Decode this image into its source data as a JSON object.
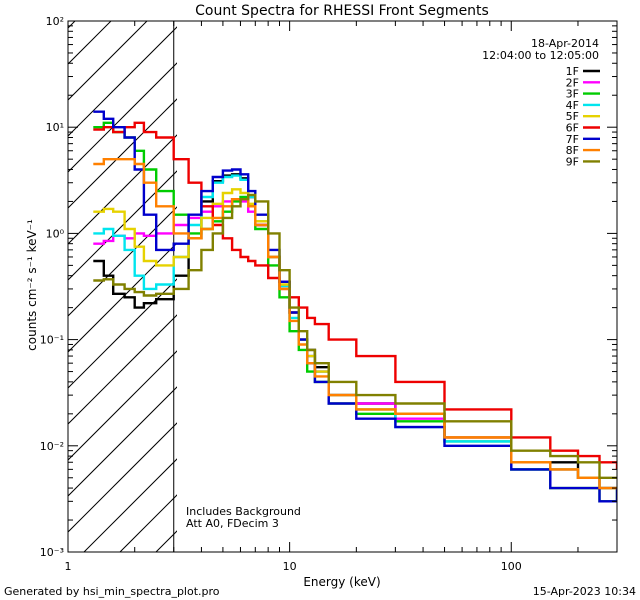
{
  "chart_data": {
    "type": "line",
    "title": "Count Spectra for RHESSI Front Segments",
    "xlabel": "Energy (keV)",
    "ylabel": "counts cm⁻² s⁻¹ keV⁻¹",
    "xscale": "log",
    "yscale": "log",
    "xlim": [
      1,
      300
    ],
    "ylim": [
      0.001,
      100
    ],
    "x_tick_labels": [
      "1",
      "10",
      "100"
    ],
    "y_tick_labels": [
      "10⁻³",
      "10⁻²",
      "10⁻¹",
      "10⁰",
      "10¹",
      "10²"
    ],
    "date": "18-Apr-2014",
    "time_range": "12:04:00 to 12:05:00",
    "annotation_lines": [
      "Includes Background",
      "Att A0, FDecim 3"
    ],
    "footer_left": "Generated by hsi_min_spectra_plot.pro",
    "footer_right": "15-Apr-2023 10:34",
    "hatched_region_max_energy": 3,
    "series": [
      {
        "name": "1F",
        "color": "#000000",
        "x": [
          1.3,
          1.45,
          1.6,
          1.8,
          2.0,
          2.2,
          2.5,
          3.0,
          3.5,
          4.0,
          4.5,
          5.0,
          5.5,
          6.0,
          6.5,
          7.0,
          8.0,
          9.0,
          10.0,
          11.0,
          12.0,
          13.0,
          15.0,
          20.0,
          30.0,
          50.0,
          100.0,
          150.0,
          200.0,
          250.0,
          300.0
        ],
        "y": [
          0.55,
          0.4,
          0.27,
          0.25,
          0.2,
          0.22,
          0.24,
          0.4,
          0.9,
          2.0,
          3.1,
          3.5,
          3.6,
          3.3,
          2.2,
          1.2,
          0.6,
          0.35,
          0.18,
          0.1,
          0.08,
          0.055,
          0.03,
          0.025,
          0.02,
          0.012,
          0.006,
          0.007,
          0.005,
          0.004,
          0.004
        ]
      },
      {
        "name": "2F",
        "color": "#ff00ff",
        "x": [
          1.3,
          1.45,
          1.6,
          1.8,
          2.0,
          2.2,
          2.5,
          3.0,
          3.5,
          4.0,
          4.5,
          5.0,
          5.5,
          6.0,
          6.5,
          7.0,
          8.0,
          9.0,
          10.0,
          11.0,
          12.0,
          13.0,
          15.0,
          20.0,
          30.0,
          50.0,
          100.0,
          150.0,
          200.0,
          250.0,
          300.0
        ],
        "y": [
          0.8,
          0.85,
          0.95,
          0.9,
          1.0,
          0.95,
          1.0,
          1.2,
          1.4,
          1.6,
          1.8,
          2.0,
          2.1,
          2.0,
          1.6,
          1.2,
          0.6,
          0.35,
          0.18,
          0.1,
          0.07,
          0.05,
          0.03,
          0.025,
          0.018,
          0.012,
          0.007,
          0.006,
          0.005,
          0.004,
          0.004
        ]
      },
      {
        "name": "3F",
        "color": "#00cc00",
        "x": [
          1.3,
          1.45,
          1.6,
          1.8,
          2.0,
          2.2,
          2.5,
          3.0,
          3.5,
          4.0,
          4.5,
          5.0,
          5.5,
          6.0,
          6.5,
          7.0,
          8.0,
          9.0,
          10.0,
          11.0,
          12.0,
          13.0,
          15.0,
          20.0,
          30.0,
          50.0,
          100.0,
          150.0,
          200.0,
          250.0,
          300.0
        ],
        "y": [
          10.0,
          11.0,
          9.0,
          8.0,
          6.0,
          4.0,
          2.5,
          1.5,
          1.0,
          1.1,
          1.3,
          1.6,
          2.0,
          2.2,
          1.8,
          1.1,
          0.5,
          0.25,
          0.12,
          0.08,
          0.05,
          0.04,
          0.025,
          0.02,
          0.017,
          0.011,
          0.006,
          0.004,
          0.004,
          0.003,
          0.004
        ]
      },
      {
        "name": "4F",
        "color": "#00e5ee",
        "x": [
          1.3,
          1.45,
          1.6,
          1.8,
          2.0,
          2.2,
          2.5,
          3.0,
          3.5,
          4.0,
          4.5,
          5.0,
          5.5,
          6.0,
          6.5,
          7.0,
          8.0,
          9.0,
          10.0,
          11.0,
          12.0,
          13.0,
          15.0,
          20.0,
          30.0,
          50.0,
          100.0,
          150.0,
          200.0,
          250.0,
          300.0
        ],
        "y": [
          1.0,
          1.1,
          0.95,
          0.7,
          0.4,
          0.3,
          0.33,
          0.6,
          1.2,
          2.2,
          3.0,
          3.4,
          3.5,
          3.2,
          2.2,
          1.3,
          0.6,
          0.32,
          0.16,
          0.1,
          0.07,
          0.05,
          0.03,
          0.022,
          0.015,
          0.011,
          0.006,
          0.006,
          0.005,
          0.004,
          0.004
        ]
      },
      {
        "name": "5F",
        "color": "#e6d200",
        "x": [
          1.3,
          1.45,
          1.6,
          1.8,
          2.0,
          2.2,
          2.5,
          3.0,
          3.5,
          4.0,
          4.5,
          5.0,
          5.5,
          6.0,
          6.5,
          7.0,
          8.0,
          9.0,
          10.0,
          11.0,
          12.0,
          13.0,
          15.0,
          20.0,
          30.0,
          50.0,
          100.0,
          150.0,
          200.0,
          250.0,
          300.0
        ],
        "y": [
          1.6,
          1.7,
          1.6,
          1.1,
          0.75,
          0.55,
          0.5,
          0.6,
          0.9,
          1.4,
          1.9,
          2.4,
          2.6,
          2.4,
          1.9,
          1.3,
          0.6,
          0.33,
          0.18,
          0.1,
          0.07,
          0.05,
          0.03,
          0.022,
          0.02,
          0.012,
          0.007,
          0.006,
          0.005,
          0.004,
          0.004
        ]
      },
      {
        "name": "6F",
        "color": "#ee0000",
        "x": [
          1.3,
          1.45,
          1.6,
          1.8,
          2.0,
          2.2,
          2.5,
          3.0,
          3.5,
          4.0,
          4.5,
          5.0,
          5.5,
          6.0,
          6.5,
          7.0,
          8.0,
          9.0,
          10.0,
          11.0,
          12.0,
          13.0,
          15.0,
          20.0,
          30.0,
          50.0,
          100.0,
          150.0,
          200.0,
          250.0,
          300.0
        ],
        "y": [
          9.5,
          10.0,
          9.0,
          10.0,
          11.0,
          9.0,
          8.0,
          5.0,
          3.0,
          1.8,
          1.2,
          0.9,
          0.7,
          0.6,
          0.55,
          0.5,
          0.38,
          0.3,
          0.25,
          0.2,
          0.16,
          0.14,
          0.1,
          0.07,
          0.04,
          0.022,
          0.012,
          0.009,
          0.008,
          0.007,
          0.006
        ]
      },
      {
        "name": "7F",
        "color": "#0000cc",
        "x": [
          1.3,
          1.45,
          1.6,
          1.8,
          2.0,
          2.2,
          2.5,
          3.0,
          3.5,
          4.0,
          4.5,
          5.0,
          5.5,
          6.0,
          6.5,
          7.0,
          8.0,
          9.0,
          10.0,
          11.0,
          12.0,
          13.0,
          15.0,
          20.0,
          30.0,
          50.0,
          100.0,
          150.0,
          200.0,
          250.0,
          300.0
        ],
        "y": [
          14.0,
          12.0,
          10.0,
          8.0,
          4.0,
          1.5,
          0.7,
          0.8,
          1.5,
          2.5,
          3.4,
          3.9,
          4.0,
          3.6,
          2.5,
          1.5,
          0.7,
          0.35,
          0.18,
          0.1,
          0.06,
          0.04,
          0.025,
          0.018,
          0.015,
          0.01,
          0.006,
          0.004,
          0.004,
          0.003,
          0.004
        ]
      },
      {
        "name": "8F",
        "color": "#ff8000",
        "x": [
          1.3,
          1.45,
          1.6,
          1.8,
          2.0,
          2.2,
          2.5,
          3.0,
          3.5,
          4.0,
          4.5,
          5.0,
          5.5,
          6.0,
          6.5,
          7.0,
          8.0,
          9.0,
          10.0,
          11.0,
          12.0,
          13.0,
          15.0,
          20.0,
          30.0,
          50.0,
          100.0,
          150.0,
          200.0,
          250.0,
          300.0
        ],
        "y": [
          4.5,
          5.0,
          5.0,
          5.0,
          4.5,
          3.0,
          1.8,
          1.0,
          0.9,
          1.1,
          1.4,
          1.8,
          2.1,
          2.1,
          1.8,
          1.2,
          0.6,
          0.3,
          0.15,
          0.09,
          0.06,
          0.045,
          0.03,
          0.022,
          0.02,
          0.012,
          0.007,
          0.006,
          0.005,
          0.004,
          0.004
        ]
      },
      {
        "name": "9F",
        "color": "#808000",
        "x": [
          1.3,
          1.45,
          1.6,
          1.8,
          2.0,
          2.2,
          2.5,
          3.0,
          3.5,
          4.0,
          4.5,
          5.0,
          5.5,
          6.0,
          6.5,
          7.0,
          8.0,
          9.0,
          10.0,
          11.0,
          12.0,
          13.0,
          15.0,
          20.0,
          30.0,
          50.0,
          100.0,
          150.0,
          200.0,
          250.0,
          300.0
        ],
        "y": [
          0.36,
          0.37,
          0.33,
          0.3,
          0.28,
          0.26,
          0.27,
          0.3,
          0.45,
          0.7,
          1.0,
          1.4,
          1.8,
          2.1,
          2.3,
          2.0,
          1.0,
          0.45,
          0.2,
          0.12,
          0.08,
          0.06,
          0.04,
          0.03,
          0.025,
          0.017,
          0.009,
          0.008,
          0.007,
          0.005,
          0.005
        ]
      }
    ]
  }
}
